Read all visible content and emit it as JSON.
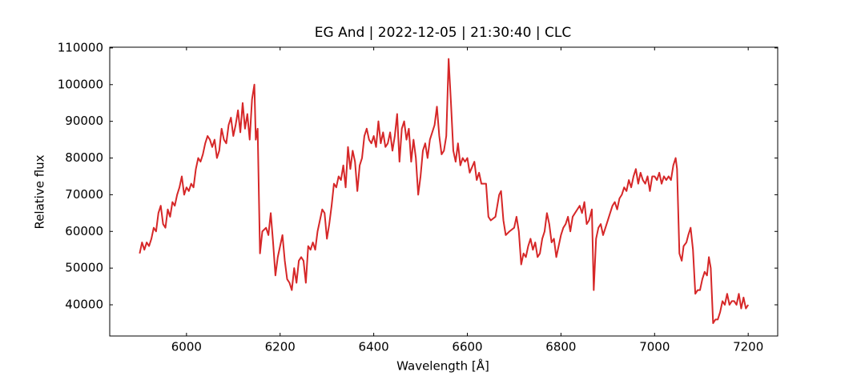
{
  "chart_data": {
    "type": "line",
    "title": "EG And | 2022-12-05 | 21:30:40 | CLC",
    "xlabel": "Wavelength [Å]",
    "ylabel": "Relative flux",
    "color": "#d62728",
    "xlim": [
      5836,
      7263
    ],
    "ylim": [
      31500,
      110200
    ],
    "xticks": [
      6000,
      6200,
      6400,
      6600,
      6800,
      7000,
      7200
    ],
    "yticks": [
      40000,
      50000,
      60000,
      70000,
      80000,
      90000,
      100000,
      110000
    ],
    "x": [
      5900,
      5905,
      5910,
      5915,
      5920,
      5925,
      5930,
      5935,
      5940,
      5945,
      5950,
      5955,
      5960,
      5965,
      5970,
      5975,
      5980,
      5985,
      5990,
      5995,
      6000,
      6005,
      6010,
      6015,
      6020,
      6025,
      6030,
      6035,
      6040,
      6045,
      6050,
      6055,
      6060,
      6065,
      6070,
      6075,
      6080,
      6085,
      6090,
      6095,
      6100,
      6105,
      6110,
      6115,
      6120,
      6125,
      6130,
      6135,
      6140,
      6145,
      6148,
      6152,
      6157,
      6162,
      6170,
      6175,
      6180,
      6185,
      6190,
      6195,
      6200,
      6205,
      6210,
      6215,
      6220,
      6225,
      6230,
      6235,
      6240,
      6245,
      6250,
      6255,
      6260,
      6265,
      6270,
      6275,
      6280,
      6285,
      6290,
      6295,
      6300,
      6305,
      6310,
      6315,
      6320,
      6325,
      6330,
      6335,
      6340,
      6345,
      6350,
      6355,
      6360,
      6365,
      6370,
      6375,
      6380,
      6385,
      6390,
      6395,
      6400,
      6405,
      6410,
      6415,
      6420,
      6425,
      6430,
      6435,
      6440,
      6445,
      6450,
      6455,
      6460,
      6465,
      6470,
      6475,
      6480,
      6485,
      6490,
      6495,
      6500,
      6505,
      6510,
      6515,
      6520,
      6525,
      6530,
      6535,
      6540,
      6545,
      6550,
      6555,
      6560,
      6565,
      6570,
      6575,
      6580,
      6585,
      6590,
      6595,
      6600,
      6605,
      6615,
      6620,
      6625,
      6630,
      6640,
      6645,
      6650,
      6660,
      6668,
      6672,
      6677,
      6682,
      6690,
      6700,
      6705,
      6710,
      6715,
      6720,
      6725,
      6730,
      6735,
      6740,
      6745,
      6750,
      6755,
      6760,
      6765,
      6770,
      6775,
      6780,
      6785,
      6790,
      6795,
      6800,
      6805,
      6810,
      6815,
      6820,
      6825,
      6830,
      6835,
      6840,
      6845,
      6850,
      6855,
      6860,
      6866,
      6870,
      6875,
      6880,
      6885,
      6890,
      6895,
      6900,
      6905,
      6910,
      6915,
      6920,
      6925,
      6930,
      6935,
      6940,
      6945,
      6950,
      6955,
      6960,
      6965,
      6970,
      6975,
      6980,
      6985,
      6990,
      6995,
      7000,
      7005,
      7010,
      7015,
      7020,
      7025,
      7030,
      7035,
      7040,
      7045,
      7048,
      7053,
      7058,
      7062,
      7068,
      7072,
      7077,
      7082,
      7087,
      7092,
      7097,
      7102,
      7107,
      7112,
      7116,
      7120,
      7125,
      7130,
      7135,
      7140,
      7145,
      7150,
      7155,
      7160,
      7165,
      7170,
      7175,
      7180,
      7185,
      7190,
      7195,
      7200
    ],
    "values": [
      54000,
      57000,
      55000,
      57000,
      56000,
      58000,
      61000,
      60000,
      65000,
      67000,
      62000,
      61000,
      66000,
      64000,
      68000,
      67000,
      70000,
      72000,
      75000,
      70000,
      72000,
      71000,
      73000,
      72000,
      77000,
      80000,
      79000,
      81000,
      84000,
      86000,
      85000,
      83000,
      85000,
      80000,
      82000,
      88000,
      85000,
      84000,
      89000,
      91000,
      86000,
      89000,
      93000,
      87000,
      95000,
      88000,
      92000,
      85000,
      96000,
      100000,
      85000,
      88000,
      54000,
      60000,
      61000,
      59000,
      65000,
      57000,
      48000,
      53000,
      56000,
      59000,
      52000,
      47000,
      46000,
      44000,
      50000,
      46000,
      52000,
      53000,
      52000,
      46000,
      56000,
      55000,
      57000,
      55000,
      60000,
      63000,
      66000,
      65000,
      58000,
      62000,
      67000,
      73000,
      72000,
      75000,
      74000,
      78000,
      72000,
      83000,
      77000,
      82000,
      79000,
      71000,
      78000,
      80000,
      86000,
      88000,
      85000,
      84000,
      86000,
      83000,
      90000,
      84000,
      87000,
      83000,
      84000,
      87000,
      82000,
      86000,
      92000,
      79000,
      88000,
      90000,
      85000,
      88000,
      79000,
      85000,
      80000,
      70000,
      75000,
      82000,
      84000,
      80000,
      85000,
      87000,
      89000,
      94000,
      86000,
      81000,
      82000,
      86000,
      107000,
      95000,
      82000,
      79000,
      84000,
      78000,
      80000,
      79000,
      80000,
      76000,
      79000,
      74000,
      76000,
      73000,
      73000,
      64000,
      63000,
      64000,
      70000,
      71000,
      63000,
      59000,
      60000,
      61000,
      64000,
      60000,
      51000,
      54000,
      53000,
      56000,
      58000,
      55000,
      57000,
      53000,
      54000,
      58000,
      60000,
      65000,
      62000,
      57000,
      58000,
      53000,
      56000,
      59000,
      61000,
      62000,
      64000,
      60000,
      64000,
      65000,
      66000,
      67000,
      65000,
      68000,
      62000,
      63000,
      66000,
      44000,
      58000,
      61000,
      62000,
      59000,
      61000,
      63000,
      65000,
      67000,
      68000,
      66000,
      69000,
      70000,
      72000,
      71000,
      74000,
      72000,
      75000,
      77000,
      73000,
      76000,
      74000,
      73000,
      75000,
      71000,
      75000,
      75000,
      74000,
      76000,
      73000,
      75000,
      74000,
      75000,
      74000,
      78000,
      80000,
      77000,
      54000,
      52000,
      56000,
      57000,
      59000,
      61000,
      55000,
      43000,
      44000,
      44000,
      47000,
      49000,
      48000,
      53000,
      50000,
      35000,
      36000,
      36000,
      38000,
      41000,
      40000,
      43000,
      40000,
      41000,
      41000,
      40000,
      43000,
      39000,
      42000,
      39000,
      40000
    ]
  }
}
